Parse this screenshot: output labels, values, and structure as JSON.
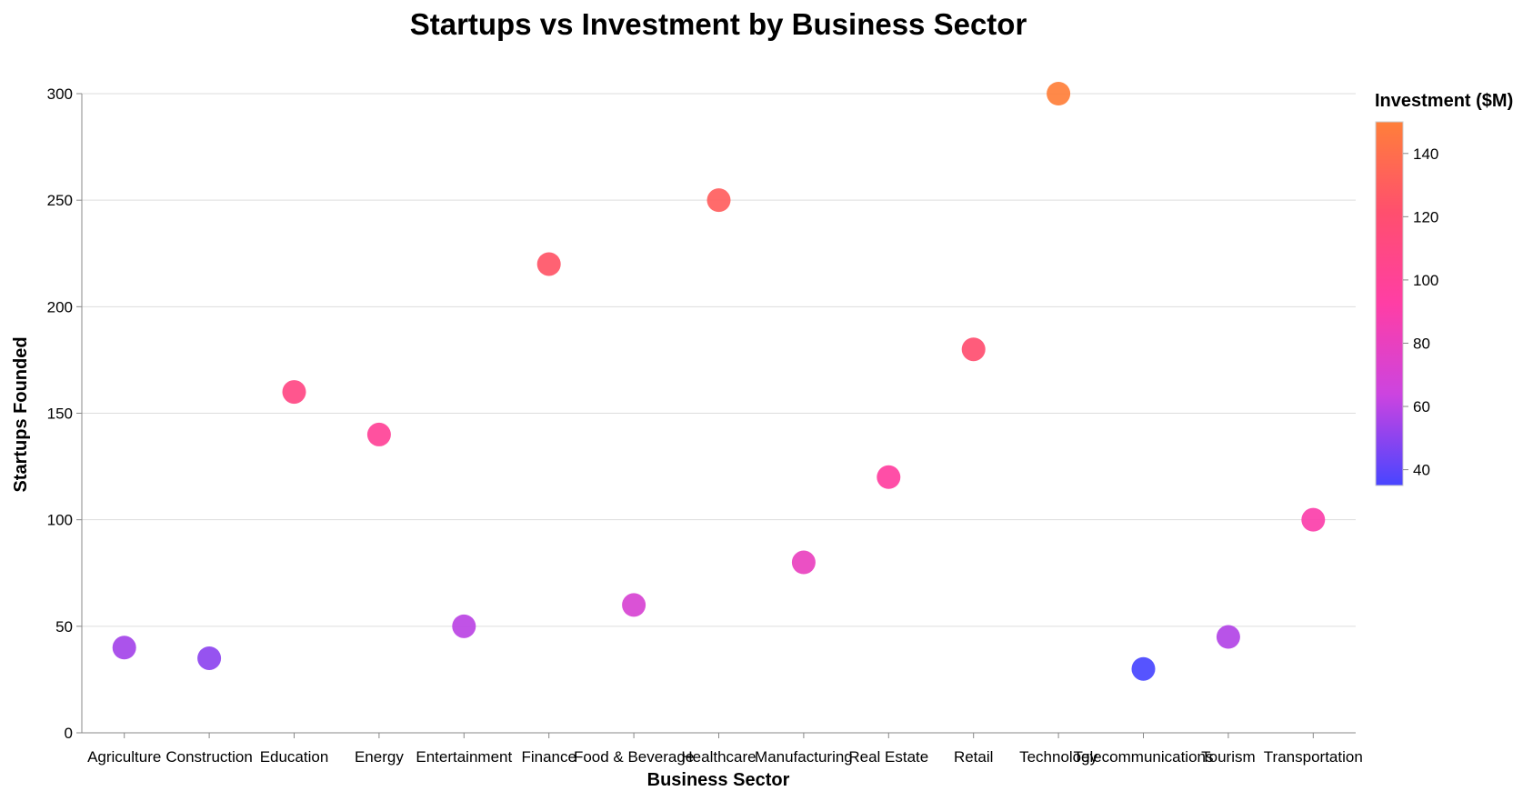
{
  "chart_data": {
    "type": "scatter",
    "title": "Startups vs Investment by Business Sector",
    "xlabel": "Business Sector",
    "ylabel": "Startups Founded",
    "ylim": [
      0,
      300
    ],
    "yticks": [
      0,
      50,
      100,
      150,
      200,
      250,
      300
    ],
    "grid": true,
    "categories": [
      "Agriculture",
      "Construction",
      "Education",
      "Energy",
      "Entertainment",
      "Finance",
      "Food & Beverage",
      "Healthcare",
      "Manufacturing",
      "Real Estate",
      "Retail",
      "Technology",
      "Telecommunications",
      "Tourism",
      "Transportation"
    ],
    "values": [
      40,
      35,
      160,
      140,
      50,
      220,
      60,
      250,
      80,
      120,
      180,
      300,
      30,
      45,
      100
    ],
    "color_values": [
      55,
      50,
      110,
      100,
      60,
      125,
      70,
      130,
      80,
      95,
      120,
      150,
      35,
      58,
      90
    ],
    "legend": {
      "title": "Investment ($M)",
      "placement": "right",
      "range": [
        35,
        150
      ],
      "ticks": [
        40,
        60,
        80,
        100,
        120,
        140
      ],
      "colors": [
        "#4845ff",
        "#cc44e0",
        "#ff3ea5",
        "#ff4f6e",
        "#ff7f3a"
      ]
    }
  }
}
